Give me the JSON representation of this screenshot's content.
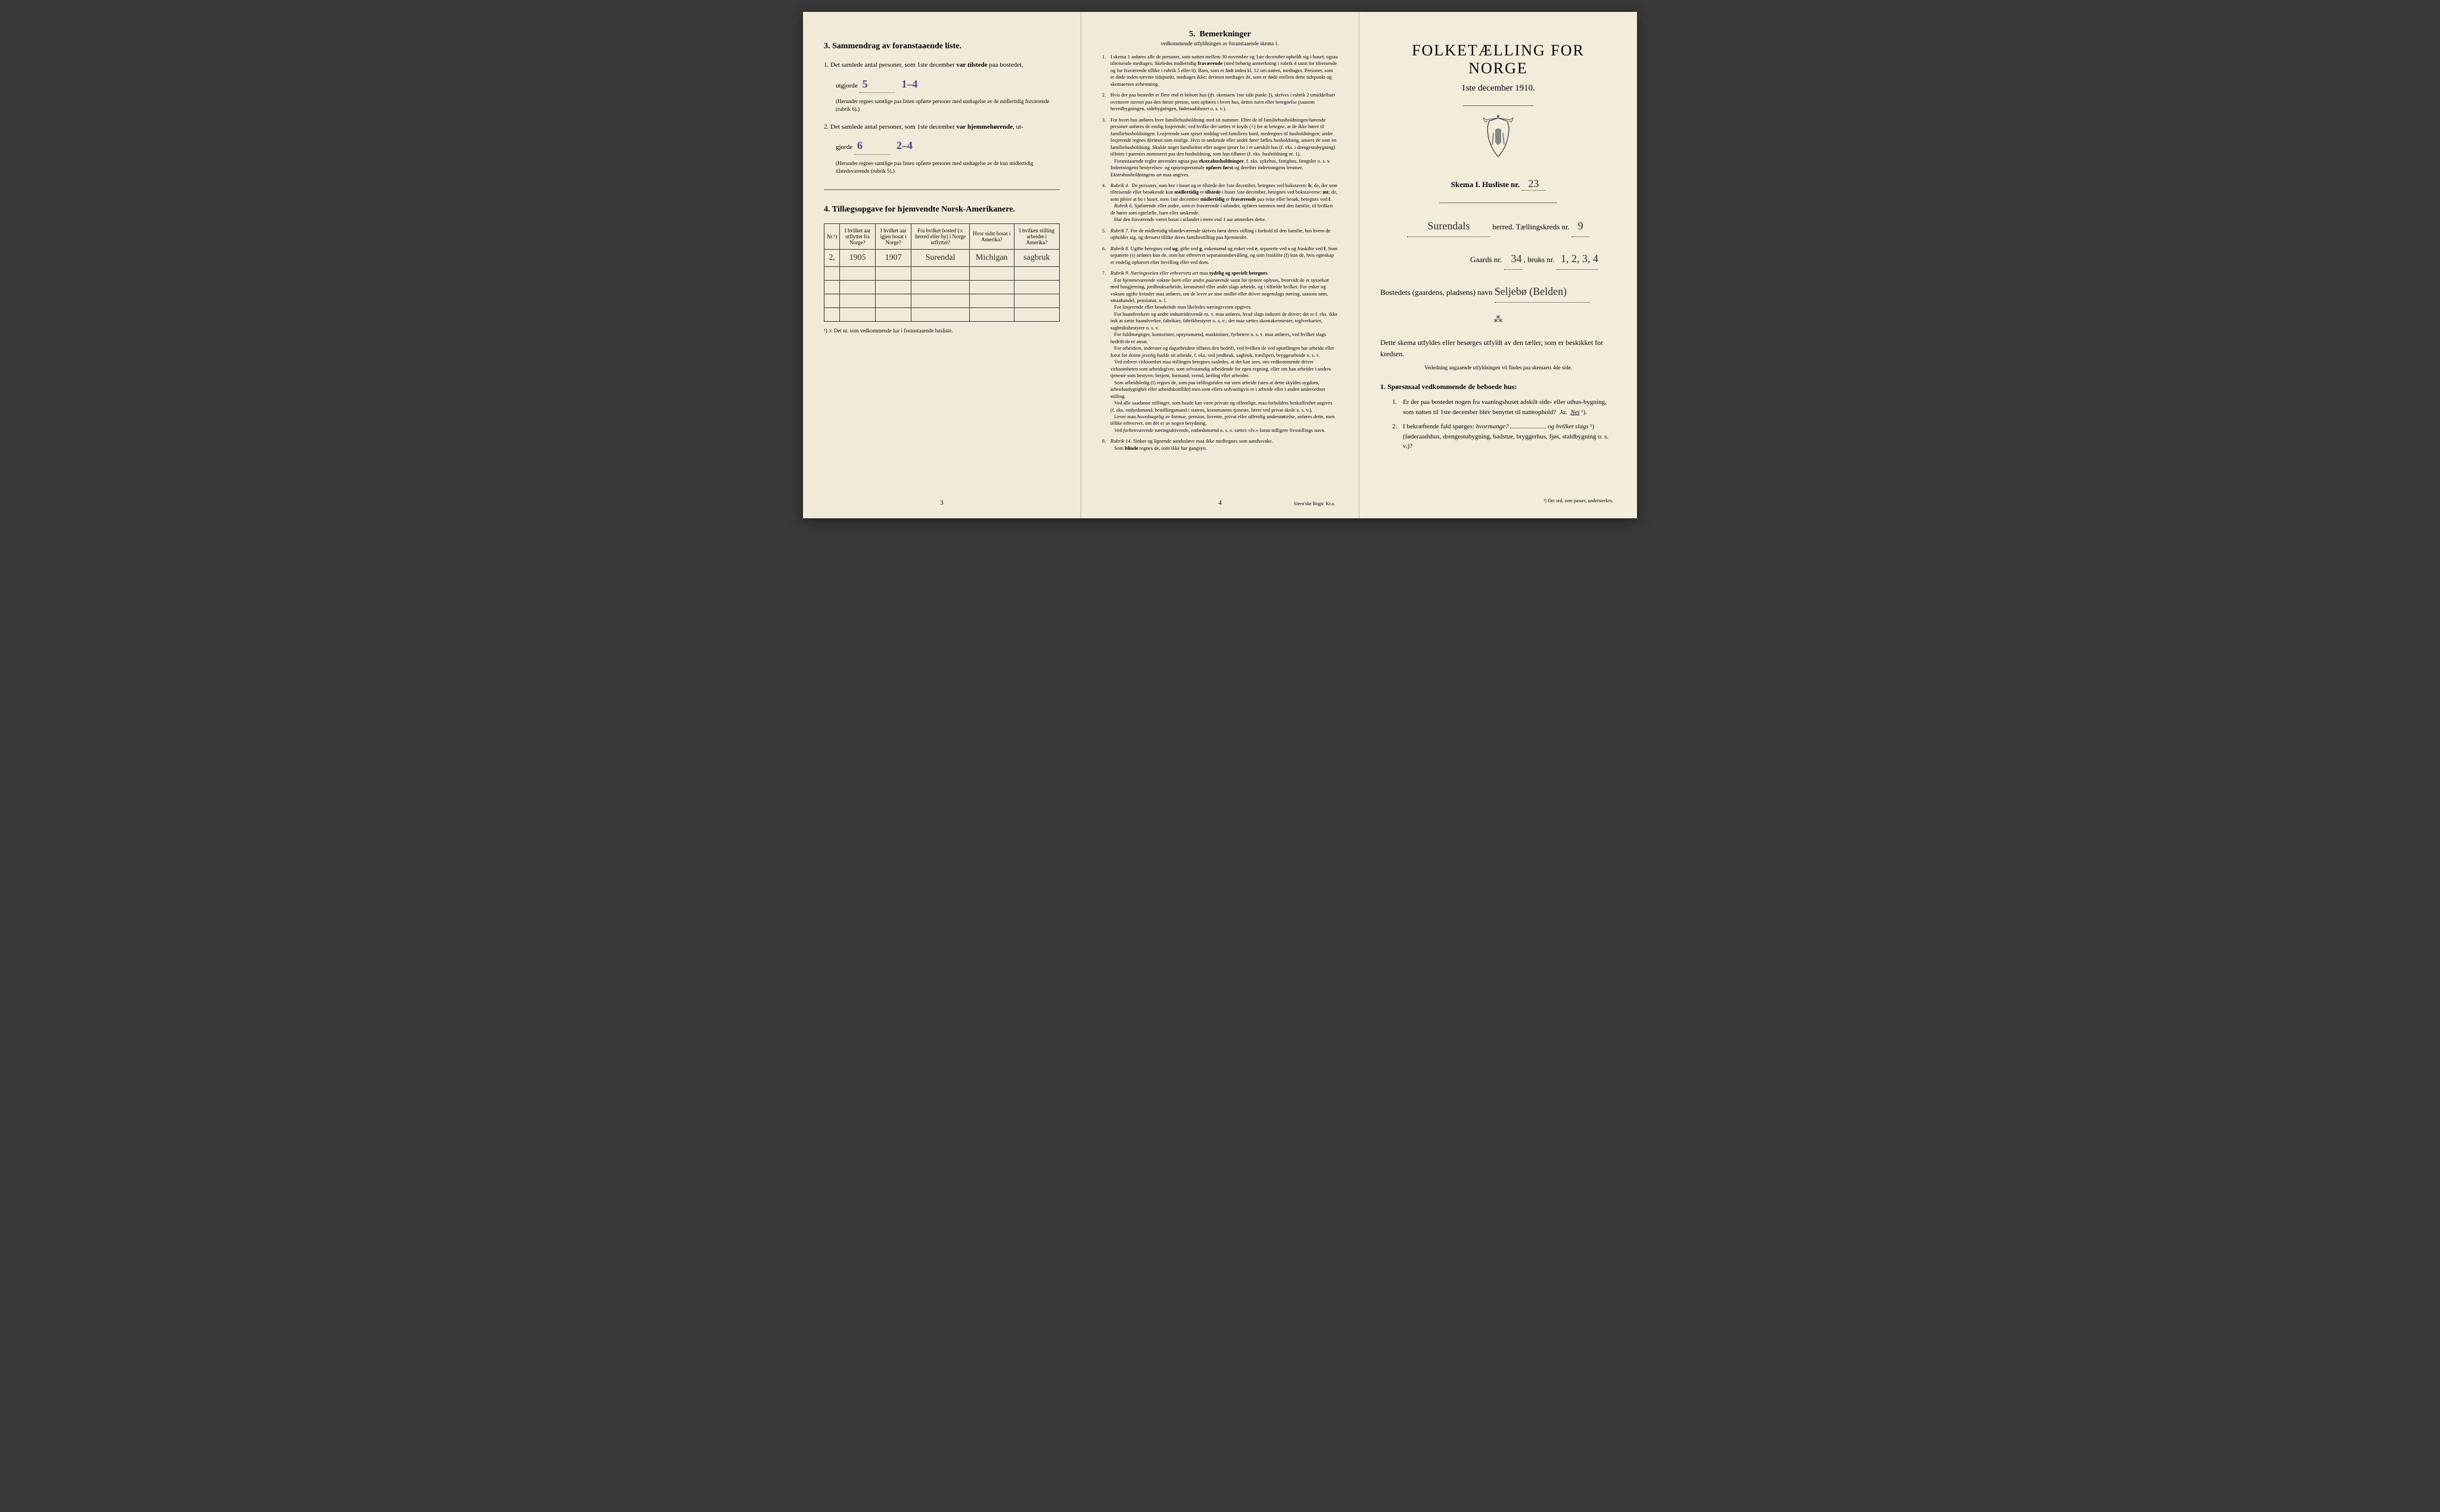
{
  "left": {
    "section3_title": "3.   Sammendrag av foranstaaende liste.",
    "line1_prefix": "1.   Det samlede antal personer, som 1ste december",
    "line1_bold": "var tilstede",
    "line1_suffix": "paa bostedet,",
    "utgjorde_label": "utgjorde",
    "val1a": "5",
    "val1b": "1–4",
    "note1": "(Herunder regnes samtlige paa listen opførte personer med undtagelse av de midlertidig fraværende (rubrik 6).)",
    "line2_prefix": "2.   Det samlede antal personer, som 1ste december",
    "line2_bold": "var hjemmehørende",
    "line2_suffix": ", ut-",
    "gjorde_label": "gjorde",
    "val2a": "6",
    "val2b": "2–4",
    "note2": "(Herunder regnes samtlige paa listen opførte personer med undtagelse av de kun midlertidig tilstedeværende (rubrik 5).)",
    "section4_title": "4.   Tillægsopgave for hjemvendte Norsk-Amerikanere.",
    "th": [
      "Nr.¹)",
      "I hvilket aar utflyttet fra Norge?",
      "I hvilket aar igjen bosat i Norge?",
      "Fra hvilket bosted (ɔ: herred eller by) i Norge utflyttet?",
      "Hvor sidst bosat i Amerika?",
      "I hvilken stilling arbeidet i Amerika?"
    ],
    "row1": [
      "2,",
      "1905",
      "1907",
      "Surendal",
      "Michigan",
      "sagbruk"
    ],
    "footnote": "¹) ɔ: Det nr. som vedkommende har i foranstaaende husliste.",
    "page": "3"
  },
  "mid": {
    "title_num": "5.",
    "title": "Bemerkninger",
    "subtitle": "vedkommende utfyldningen av foranstaaende skema 1.",
    "rules": [
      "I skema 1 anføres alle de personer, som natten mellem 30 november og 1ste december opholdt sig i huset; ogsaa tilreisende medtages; likeledes midlertidig <b>fraværende</b> (med behørig anmerkning i rubrik 4 samt for tilreisende og for fraværende tillike i rubrik 5 eller 6). Barn, som er født inden kl. 12 om natten, medtages. Personer, som er døde inden nævnte tidspunkt, medtages ikke; derimot medtages de, som er døde mellem dette tidspunkt og skemaernes avhentning.",
      "Hvis der paa bostedet er flere end ét beboet hus (jfr. skemaets 1ste side punkt 2), skrives i rubrik 2 umiddelbart ovenover navnet paa den første person, som opføres i hvert hus, dettes navn eller betegnelse (saasom hovedbygningen, sidebygningen, føderaadshuset o. s. v.).",
      "For hvert hus anføres hver familiehusholdning med sit nummer. Efter de til familiehusholdningen hørende personer anføres de enslig losjerende, ved hvilke der sættes et kryds (×) for at betegne, at de ikke hører til familiehusholdningen. Losjerende som spiser middag ved familiens bord, medregnes til husholdningen; andre losjerende regnes derimot som enslige. Hvis to søskende eller andre fører fælles husholdning, ansees de som en familiehusholdning. Skulde noget familielem eller nogen tjener bo i et særskilt hus (f. eks. i drengestubygning) tilføies i parentes nummeret paa den husholdning, som han tilhører (f. eks. husholdning nr. 1).<br>&nbsp;&nbsp;&nbsp;Foranstaaende regler anvendes ogsaa paa <b>ekstrahusholdninger</b>, f. eks. sykehus, fattighus, fængsler o. s. v. Indretningens bestyrelses- og opsynspersonale <b>opføres først</b> og derefter indretningens lemmer. Ekstrahusholdningens art maa angives.",
      "<i>Rubrik 4.</i> &nbsp;De personer, som bor i huset og er tilstede der 1ste december, betegnes ved bokstaven: <b>b</b>; de, der som tilreisende eller besøkende kun <b>midlertidig</b> er <b>tilstede</b> i huset 1ste december, betegnes ved bokstaverne: <b>mt</b>; de, som pleier at bo i huset, men 1ste december <b>midlertidig</b> er <b>fraværende</b> paa reise eller besøk, betegnes ved <b>f</b>.<br>&nbsp;&nbsp;&nbsp;<i>Rubrik 6.</i> Sjøfarende eller andre, som er fraværende i utlandet, opføres sammen med den familie, til hvilken de hører som egtefælle, barn eller søskende.<br>&nbsp;&nbsp;&nbsp;Har den fraværende været bosat i utlandet i mere end 1 aar anmerkes dette.",
      "<i>Rubrik 7.</i> For de midlertidig tilstedeværende skrives først deres stilling i forhold til den familie, hos hvem de opholder sig, og dernæst tillike deres familiestilling paa hjemstedet.",
      "<i>Rubrik 8.</i> Ugifte betegnes ved <b>ug</b>, gifte ved <b>g</b>, enkemænd og enker ved <b>e</b>, separerte ved <b>s</b> og fraskilte ved <b>f</b>. Som separerte (s) anføres kun de, som har erhvervet separationsbevilling, og som fraskilte (f) kun de, hvis egteskap er endelig ophævet efter bevilling eller ved dom.",
      "<i>Rubrik 9.</i> <i>Næringsveien eller erhvervets art</i> maa <b>tydelig og specielt betegnes</b>.<br>&nbsp;&nbsp;&nbsp;For <i>hjemmeværende voksne barn eller andre paarørende</i> samt for tjenere oplyses, hvorvidt de er sysselsat med husgjerning, jordbruksarbeide, kreaturstel eller andet slags arbeide, og i tilfælde hvilket. For enker og voksne ugifte kvinder maa anføres, om de lever av sine midler eller driver nogenslags næring, saasom søm, smaahandel, pensionat, o. l.<br>&nbsp;&nbsp;&nbsp;For losjerende eller besøkende maa likeledes næringsveien opgives.<br>&nbsp;&nbsp;&nbsp;For haandverkere og andre industridrivende m. v. maa anføres, hvad slags industri de driver; det er f. eks. ikke nok at sætte haandverker, fabrikier, fabrikbestyrer o. s. v.; der maa sættes skomakermester, teglverkseier, sagbruksbestyrer o. s. v.<br>&nbsp;&nbsp;&nbsp;For fuldmægtiger, kontorister, opsynsmænd, maskinister, fyrbetere o. s. v. maa anføres, ved hvilket slags bedrift de er ansat.<br>&nbsp;&nbsp;&nbsp;For arbeidere, inderster og dagarbeidere tilføies den bedrift, ved hvilken de ved optællingen har arbeide eller forut for denne <i>jevnlig hadde</i> sit arbeide, f. eks. ved jordbruk, sagbruk, træsliperi, bryggearbeide o. s. v.<br>&nbsp;&nbsp;&nbsp;Ved enhver virksomhet maa stillingen betegnes saaledes, at det kan sees, om vedkommende driver virksomheten som arbeidsgiver, som selvstændig arbeidende for egen regning, eller om han arbeider i andres tjeneste som bestyrer, betjent, formand, svend, lærling eller arbeider.<br>&nbsp;&nbsp;&nbsp;Som arbeidsledig (l) regnes de, som paa tællingstiden var uten arbeide (uten at dette skyldes sygdom, arbeidsudygtighet eller arbeidskonflikt) men som ellers sedvanligvis er i arbeide eller i anden underordnet stilling.<br>&nbsp;&nbsp;&nbsp;Ved alle saadanne stillinger, som baade kan være private og offentlige, maa forholdets beskaffenhet angives (f. eks. embedsmand, bestillingsmand i statens, kommunens tjeneste, lærer ved privat skole o. s. v.).<br>&nbsp;&nbsp;&nbsp;Lever man <i>hovedsagelig</i> av formue, pension, livrente, privat eller offentlig understøttelse, anføres dette, men tillike erhvervet, om det er av nogen betydning.<br>&nbsp;&nbsp;&nbsp;Ved <i>forhenværende</i> næringsdrivende, embedsmænd o. s. v. sættes «fv.» foran tidligere livsstillings navn.",
      "<i>Rubrik 14.</i> Sinker og lignende aandssløve maa ikke medregnes som aandssvake.<br>&nbsp;&nbsp;&nbsp;Som <b>blinde</b> regnes de, som ikke har gangsyn."
    ],
    "page": "4",
    "printer": "Steen'ske Bogtr.  Kr.a."
  },
  "right": {
    "main_title": "FOLKETÆLLING FOR NORGE",
    "date": "1ste december 1910.",
    "skema_label": "Skema I.   Husliste nr.",
    "husliste_nr": "23",
    "herred_val": "Surendals",
    "herred_label": "herred.   Tællingskreds nr.",
    "kreds_nr": "9",
    "gaards_label": "Gaards nr.",
    "gaards_nr": "34",
    "bruks_label": ", bruks nr.",
    "bruks_nr": "1, 2, 3, 4",
    "bosted_label": "Bostedets (gaardens, pladsens) navn",
    "bosted_val": "Seljebø (Belden)",
    "ornament": "⁂",
    "instr1": "Dette skema utfyldes eller besørges utfyldt av den tæller, som er beskikket for kredsen.",
    "instr2": "Veiledning angaaende utfyldningen vil findes paa skemaets 4de side.",
    "q_header": "1. Spørsmaal vedkommende de beboede hus:",
    "q1": "Er der paa bostedet nogen fra vaaningshuset adskilt side- eller uthus-bygning, som natten til 1ste december blev benyttet til natteophold?",
    "q1_ja": "Ja.",
    "q1_nei": "Nei",
    "q1_sup": "¹).",
    "q2": "I bekræftende fald spørges:",
    "q2_em1": "hvormange?",
    "q2_mid": "og",
    "q2_em2": "hvilket slags",
    "q2_sup": "¹)",
    "q2_tail": "(føderaadshus, drengestubygning, badstue, bryggerhus, fjøs, staldbygning o. s. v.)?",
    "footnote": "¹) Det ord, som passer, understrekes."
  }
}
